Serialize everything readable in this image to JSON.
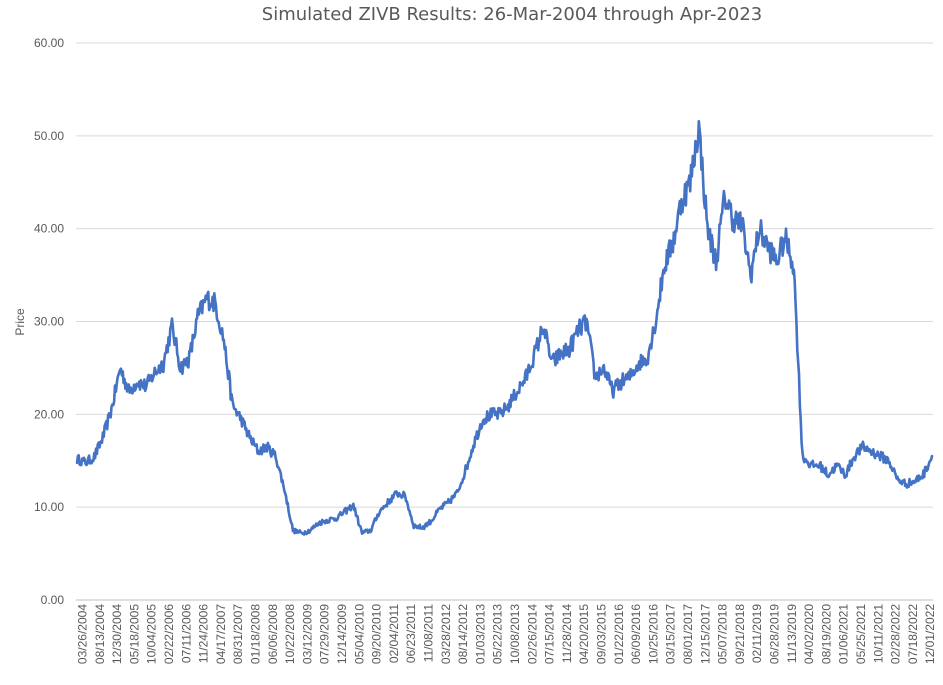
{
  "chart_data": {
    "type": "line",
    "title": "Simulated ZIVB Results: 26-Mar-2004 through Apr-2023",
    "xlabel": "",
    "ylabel": "Price",
    "ylim": [
      0,
      60
    ],
    "yticks": [
      "0.00",
      "10.00",
      "20.00",
      "30.00",
      "40.00",
      "50.00",
      "60.00"
    ],
    "grid": true,
    "legend": "none",
    "colors": {
      "series": "#4472c4",
      "grid": "#d9d9d9",
      "text": "#595959"
    },
    "x_tick_labels": [
      "03/26/2004",
      "08/13/2004",
      "12/30/2004",
      "05/18/2005",
      "10/04/2005",
      "02/22/2006",
      "07/11/2006",
      "11/24/2006",
      "04/17/2007",
      "08/31/2007",
      "01/18/2008",
      "06/06/2008",
      "10/22/2008",
      "03/12/2009",
      "07/29/2009",
      "12/14/2009",
      "05/04/2010",
      "09/20/2010",
      "02/04/2011",
      "06/23/2011",
      "11/08/2011",
      "03/28/2012",
      "08/14/2012",
      "01/03/2013",
      "05/22/2013",
      "10/08/2013",
      "02/26/2014",
      "07/15/2014",
      "11/28/2014",
      "04/20/2015",
      "09/03/2015",
      "01/22/2016",
      "06/09/2016",
      "10/25/2016",
      "03/15/2017",
      "08/01/2017",
      "12/15/2017",
      "05/07/2018",
      "09/21/2018",
      "02/11/2019",
      "06/28/2019",
      "11/13/2019",
      "04/02/2020",
      "08/19/2020",
      "01/06/2021",
      "05/25/2021",
      "10/11/2021",
      "02/28/2022",
      "07/18/2022",
      "12/01/2022"
    ],
    "series": [
      {
        "name": "",
        "x": [
          "03/26/2004",
          "06/2004",
          "08/13/2004",
          "10/2004",
          "12/30/2004",
          "02/2005",
          "05/18/2005",
          "08/2005",
          "10/04/2005",
          "12/2005",
          "02/22/2006",
          "05/2006",
          "07/11/2006",
          "09/2006",
          "11/24/2006",
          "02/2007",
          "04/17/2007",
          "06/2007",
          "08/31/2007",
          "11/2007",
          "01/18/2008",
          "04/2008",
          "06/06/2008",
          "08/2008",
          "10/22/2008",
          "01/2009",
          "03/12/2009",
          "05/2009",
          "07/29/2009",
          "10/2009",
          "12/14/2009",
          "03/2010",
          "05/04/2010",
          "07/2010",
          "09/20/2010",
          "12/2010",
          "02/04/2011",
          "04/2011",
          "06/23/2011",
          "09/2011",
          "11/08/2011",
          "01/2012",
          "03/28/2012",
          "06/2012",
          "08/14/2012",
          "11/2012",
          "01/03/2013",
          "03/2013",
          "05/22/2013",
          "08/2013",
          "10/08/2013",
          "12/2013",
          "02/26/2014",
          "05/2014",
          "07/15/2014",
          "09/2014",
          "11/28/2014",
          "02/2015",
          "04/20/2015",
          "07/2015",
          "09/03/2015",
          "11/2015",
          "01/22/2016",
          "04/2016",
          "06/09/2016",
          "08/2016",
          "10/25/2016",
          "01/2017",
          "03/15/2017",
          "05/2017",
          "08/01/2017",
          "10/2017",
          "12/15/2017",
          "03/2018",
          "05/07/2018",
          "07/2018",
          "09/21/2018",
          "12/2018",
          "02/11/2019",
          "04/2019",
          "06/28/2019",
          "09/2019",
          "11/13/2019",
          "02/2020",
          "04/02/2020",
          "06/2020",
          "08/19/2020",
          "11/2020",
          "01/06/2021",
          "03/2021",
          "05/25/2021",
          "08/2021",
          "10/11/2021",
          "12/2021",
          "02/28/2022",
          "05/2022",
          "07/18/2022",
          "09/2022",
          "12/01/2022",
          "04/2023"
        ],
        "values": [
          15.2,
          14.8,
          15.4,
          17.5,
          20.5,
          25.0,
          22.5,
          23.5,
          23.0,
          24.5,
          25.5,
          29.5,
          25.0,
          26.0,
          30.5,
          32.5,
          32.0,
          28.0,
          21.0,
          19.5,
          17.5,
          16.0,
          16.5,
          15.5,
          12.0,
          7.5,
          7.2,
          7.5,
          8.3,
          8.6,
          8.8,
          9.5,
          10.2,
          7.2,
          7.5,
          9.5,
          10.5,
          11.5,
          11.2,
          8.0,
          7.8,
          8.5,
          9.8,
          10.5,
          11.5,
          14.0,
          17.0,
          19.5,
          20.0,
          20.0,
          21.0,
          22.5,
          24.0,
          26.5,
          29.5,
          25.5,
          26.5,
          27.0,
          29.0,
          30.0,
          24.0,
          25.0,
          22.5,
          23.5,
          24.0,
          25.5,
          26.0,
          30.0,
          36.0,
          38.5,
          43.0,
          45.0,
          51.0,
          40.0,
          36.5,
          43.5,
          41.0,
          40.5,
          35.0,
          40.0,
          38.0,
          36.5,
          39.0,
          36.0,
          15.5,
          14.5,
          14.5,
          13.5,
          14.5,
          13.5,
          15.5,
          16.5,
          16.0,
          15.5,
          15.0,
          13.0,
          12.5,
          12.8,
          13.5,
          15.5
        ]
      }
    ]
  }
}
